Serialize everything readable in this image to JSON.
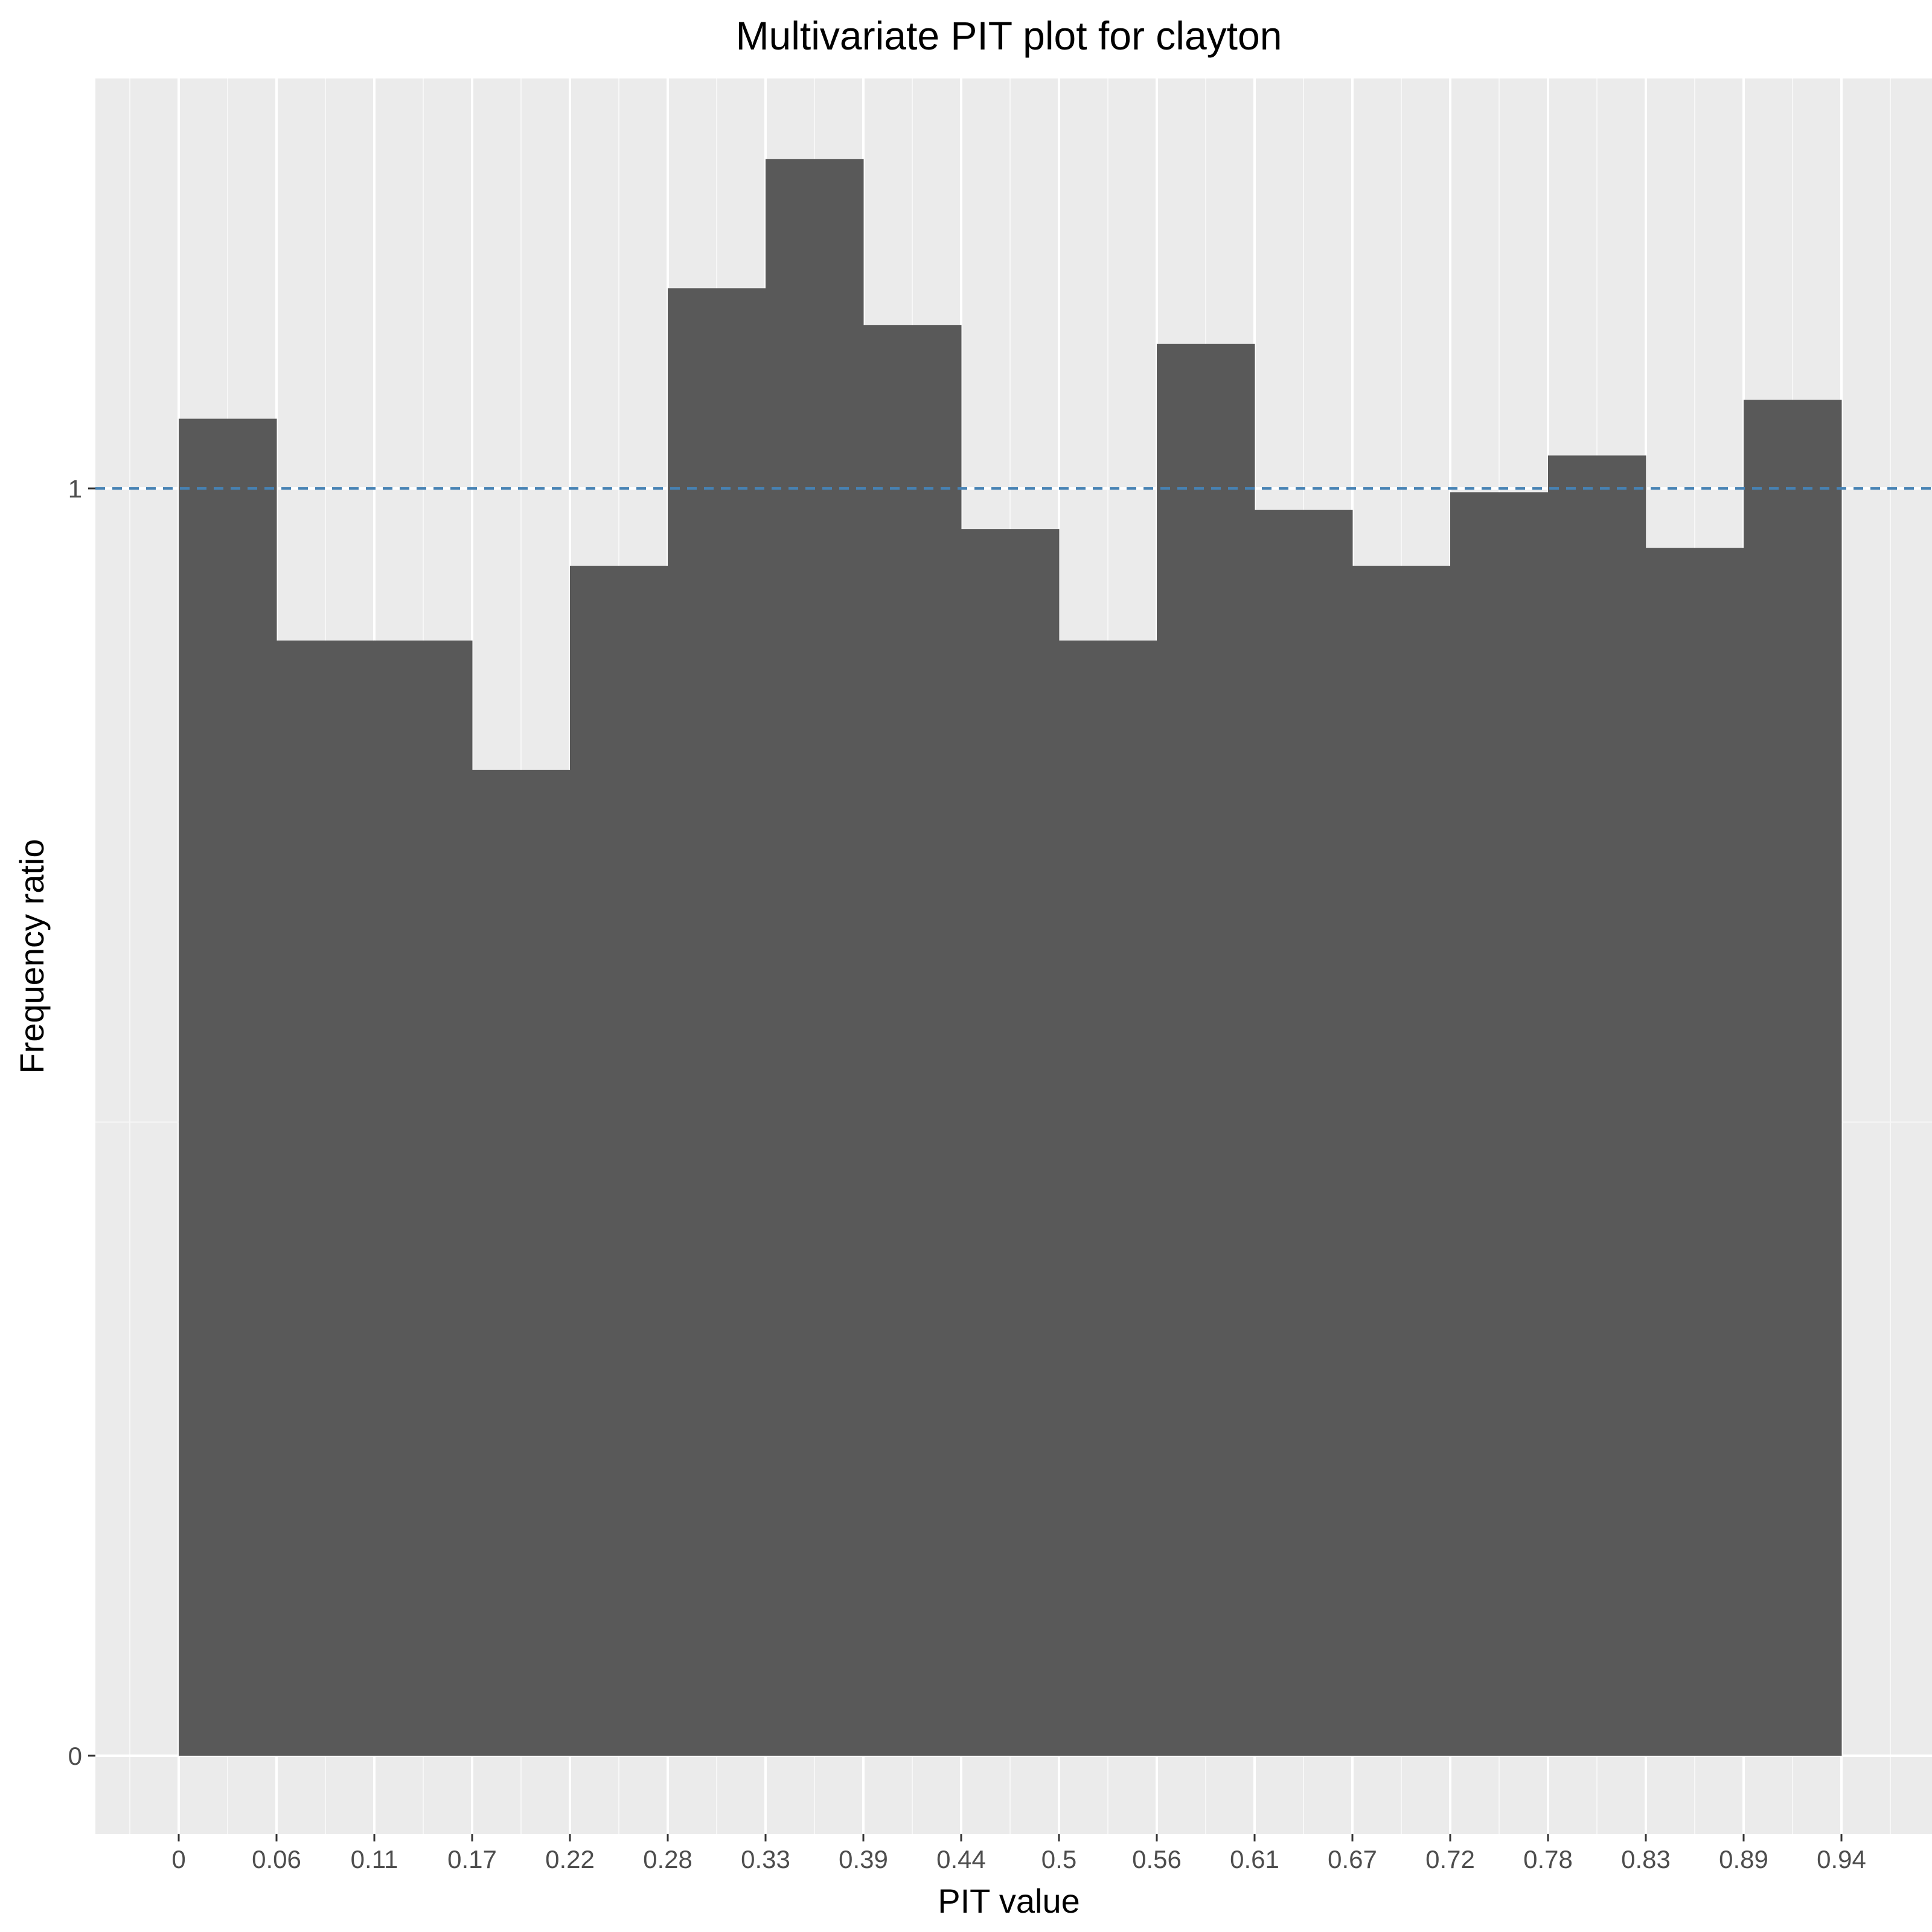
{
  "chart_data": {
    "type": "bar",
    "title": "Multivariate PIT plot for clayton",
    "xlabel": "PIT value",
    "ylabel": "Frequency ratio",
    "categories": [
      "0",
      "0.06",
      "0.11",
      "0.17",
      "0.22",
      "0.28",
      "0.33",
      "0.39",
      "0.44",
      "0.5",
      "0.56",
      "0.61",
      "0.67",
      "0.72",
      "0.78",
      "0.83",
      "0.89"
    ],
    "values": [
      1.055,
      0.88,
      0.88,
      0.778,
      0.939,
      1.158,
      1.26,
      1.129,
      0.968,
      0.88,
      1.114,
      0.983,
      0.939,
      0.997,
      1.026,
      0.953,
      1.07
    ],
    "x_ticks": [
      "0",
      "0.06",
      "0.11",
      "0.17",
      "0.22",
      "0.28",
      "0.33",
      "0.39",
      "0.44",
      "0.5",
      "0.56",
      "0.61",
      "0.67",
      "0.72",
      "0.78",
      "0.83",
      "0.89",
      "0.94"
    ],
    "y_ticks": [
      0,
      1
    ],
    "ylim": [
      -0.06,
      1.35
    ],
    "reference_line": {
      "y": 1,
      "style": "dashed",
      "color": "#4682b4"
    },
    "grid": true,
    "colors": {
      "bar": "#595959",
      "panel": "#ebebeb",
      "grid_major": "#ffffff"
    }
  }
}
